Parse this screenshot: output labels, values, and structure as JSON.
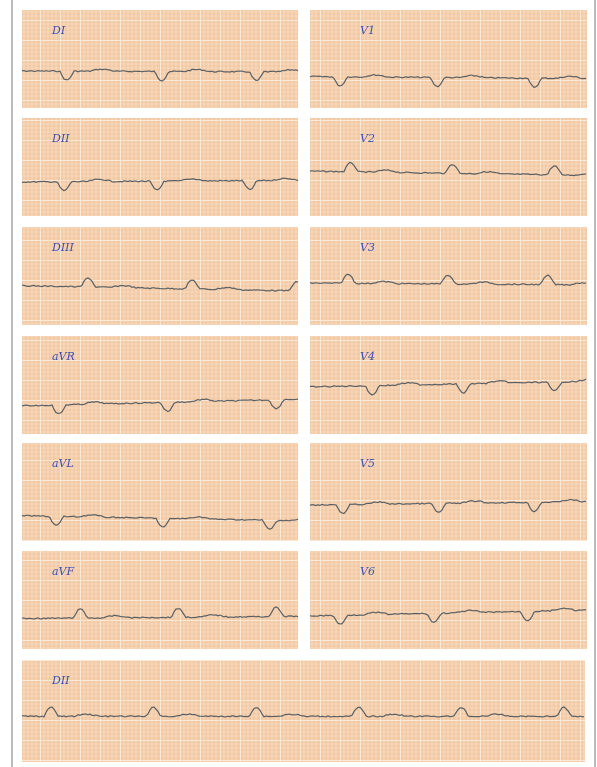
{
  "panels": [
    {
      "label": "DI"
    },
    {
      "label": "V1"
    },
    {
      "label": "DII"
    },
    {
      "label": "V2"
    },
    {
      "label": "DIII"
    },
    {
      "label": "V3"
    },
    {
      "label": "aVR"
    },
    {
      "label": "V4"
    },
    {
      "label": "aVL"
    },
    {
      "label": "V5"
    },
    {
      "label": "aVF"
    },
    {
      "label": "V6"
    },
    {
      "label": "DII"
    }
  ]
}
